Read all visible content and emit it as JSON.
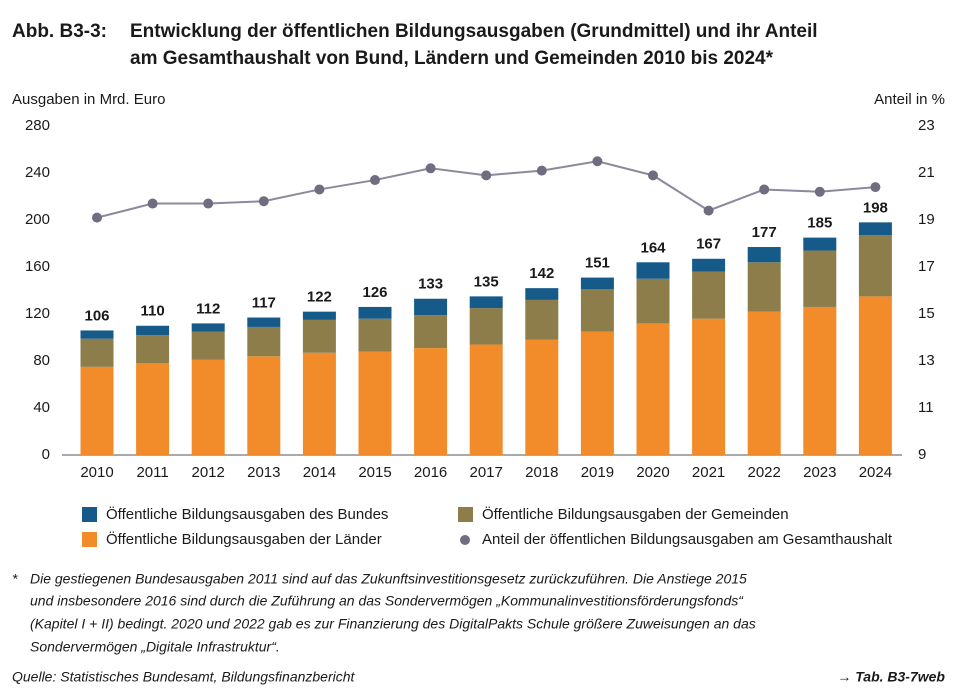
{
  "chart_data": {
    "type": "stacked-bar-line",
    "figure_label": "Abb. B3-3:",
    "title": [
      "Entwicklung der öffentlichen Bildungsausgaben (Grundmittel) und ihr Anteil",
      "am Gesamthaushalt von Bund, Ländern und Gemeinden 2010 bis 2024*"
    ],
    "y_label": "Ausgaben in Mrd. Euro",
    "y2_label": "Anteil in %",
    "categories": [
      "2010",
      "2011",
      "2012",
      "2013",
      "2014",
      "2015",
      "2016",
      "2017",
      "2018",
      "2019",
      "2020",
      "2021",
      "2022",
      "2023",
      "2024"
    ],
    "series": [
      {
        "name": "Öffentliche Bildungsausgaben der Länder",
        "color": "#f28c2b",
        "values": [
          75,
          78,
          81,
          84,
          87,
          88,
          91,
          94,
          98,
          105,
          112,
          116,
          122,
          126,
          135
        ]
      },
      {
        "name": "Öffentliche Bildungsausgaben der Gemeinden",
        "color": "#8c7d4a",
        "values": [
          24,
          24,
          24,
          25,
          28,
          28,
          28,
          31,
          34,
          36,
          38,
          40,
          42,
          48,
          52
        ]
      },
      {
        "name": "Öffentliche Bildungsausgaben des Bundes",
        "color": "#165a8a",
        "values": [
          7,
          8,
          7,
          8,
          7,
          10,
          14,
          10,
          10,
          10,
          14,
          11,
          13,
          11,
          11
        ]
      },
      {
        "name": "Anteil der öffentlichen Bildungsausgaben am Gesamthaushalt",
        "color": "#8a8a9c",
        "axis": "y2",
        "type": "line",
        "values": [
          19.1,
          19.7,
          19.7,
          19.8,
          20.3,
          20.7,
          21.2,
          20.9,
          21.1,
          21.5,
          20.9,
          19.4,
          20.3,
          20.2,
          20.4
        ]
      }
    ],
    "totals": [
      106,
      110,
      112,
      117,
      122,
      126,
      133,
      135,
      142,
      151,
      164,
      167,
      177,
      185,
      198
    ],
    "ylim": [
      0,
      280
    ],
    "yticks": [
      0,
      40,
      80,
      120,
      160,
      200,
      240,
      280
    ],
    "y2lim": [
      9,
      23
    ],
    "y2ticks": [
      9,
      11,
      13,
      15,
      17,
      19,
      21,
      23
    ],
    "grid": false,
    "footnote": [
      "Die gestiegenen Bundesausgaben 2011 sind auf das Zukunftsinvestitionsgesetz zurückzuführen. Die Anstiege 2015",
      "und insbesondere 2016 sind durch die Zuführung an das Sondervermögen „Kommunalinvestitionsförderungsfonds“",
      "(Kapitel I + II) bedingt. 2020 und 2022 gab es zur Finanzierung des DigitalPakts Schule größere Zuweisungen an das",
      "Sondervermögen „Digitale Infrastruktur“."
    ],
    "footnote_marker": "*",
    "source": "Quelle: Statistisches Bundesamt, Bildungsfinanzbericht",
    "reference": "→ Tab. B3-7web"
  }
}
